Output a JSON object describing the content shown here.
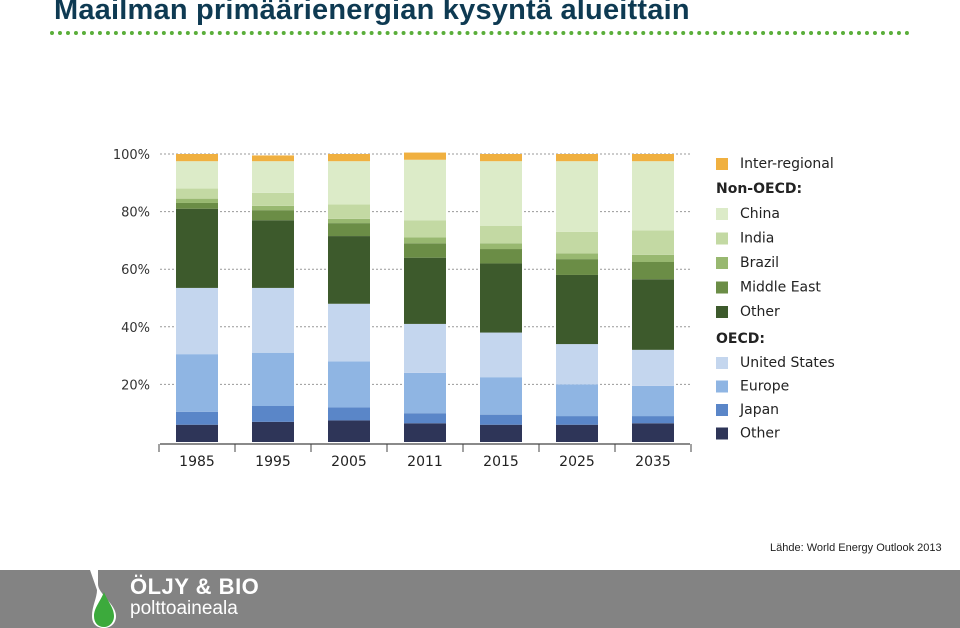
{
  "header": {
    "title": "Maailman primäärienergian kysyntä alueittain"
  },
  "chart_data": {
    "type": "bar",
    "stacked": true,
    "percent": true,
    "categories": [
      "1985",
      "1995",
      "2005",
      "2011",
      "2015",
      "2025",
      "2035"
    ],
    "y_ticks": [
      "20%",
      "40%",
      "60%",
      "80%",
      "100%"
    ],
    "ylim": [
      0,
      100
    ],
    "grid": "dotted-horizontal",
    "legend_position": "right",
    "series": [
      {
        "name": "Other",
        "group": "OECD",
        "color": "#2e3558",
        "values": [
          6,
          7,
          7.5,
          6.5,
          6,
          6,
          6.5
        ]
      },
      {
        "name": "Japan",
        "group": "OECD",
        "color": "#5a86c8",
        "values": [
          4.5,
          5.5,
          4.5,
          3.5,
          3.5,
          3,
          2.5
        ]
      },
      {
        "name": "Europe",
        "group": "OECD",
        "color": "#8fb5e3",
        "values": [
          20,
          18.5,
          16,
          14,
          13,
          11,
          10.5
        ]
      },
      {
        "name": "United States",
        "group": "OECD",
        "color": "#c4d6ee",
        "values": [
          23,
          22.5,
          20,
          17,
          15.5,
          14,
          12.5
        ]
      },
      {
        "name": "Other",
        "group": "Non-OECD",
        "color": "#3d5a2c",
        "values": [
          27.5,
          23.5,
          23.5,
          23,
          24,
          24,
          24.5
        ]
      },
      {
        "name": "Middle East",
        "group": "Non-OECD",
        "color": "#6b8d46",
        "values": [
          2,
          3.5,
          4.5,
          5,
          5,
          5.5,
          6
        ]
      },
      {
        "name": "Brazil",
        "group": "Non-OECD",
        "color": "#98b870",
        "values": [
          1.5,
          1.5,
          1.5,
          2,
          2,
          2,
          2.5
        ]
      },
      {
        "name": "India",
        "group": "Non-OECD",
        "color": "#c3d9a3",
        "values": [
          3.5,
          4.5,
          5,
          6,
          6,
          7.5,
          8.5
        ]
      },
      {
        "name": "China",
        "group": "Non-OECD",
        "color": "#dcebc8",
        "values": [
          9.5,
          11,
          15,
          21,
          22.5,
          24.5,
          24
        ]
      },
      {
        "name": "Inter-regional",
        "group": "",
        "color": "#f0b040",
        "values": [
          2.5,
          2,
          2.5,
          2.5,
          2.5,
          2.5,
          2.5
        ]
      }
    ],
    "legend": {
      "interregional": "Inter-regional",
      "non_oecd_heading": "Non-OECD:",
      "non_oecd": [
        {
          "label": "China",
          "color": "#dcebc8"
        },
        {
          "label": "India",
          "color": "#c3d9a3"
        },
        {
          "label": "Brazil",
          "color": "#98b870"
        },
        {
          "label": "Middle East",
          "color": "#6b8d46"
        },
        {
          "label": "Other",
          "color": "#3d5a2c"
        }
      ],
      "oecd_heading": "OECD:",
      "oecd": [
        {
          "label": "United States",
          "color": "#c4d6ee"
        },
        {
          "label": "Europe",
          "color": "#8fb5e3"
        },
        {
          "label": "Japan",
          "color": "#5a86c8"
        },
        {
          "label": "Other",
          "color": "#2e3558"
        }
      ]
    }
  },
  "source": "Lähde: World Energy Outlook 2013",
  "footer": {
    "logo_line1": "ÖLJY & BIO",
    "logo_line2": "polttoaineala",
    "logo_icon": "oil-drop-icon"
  }
}
